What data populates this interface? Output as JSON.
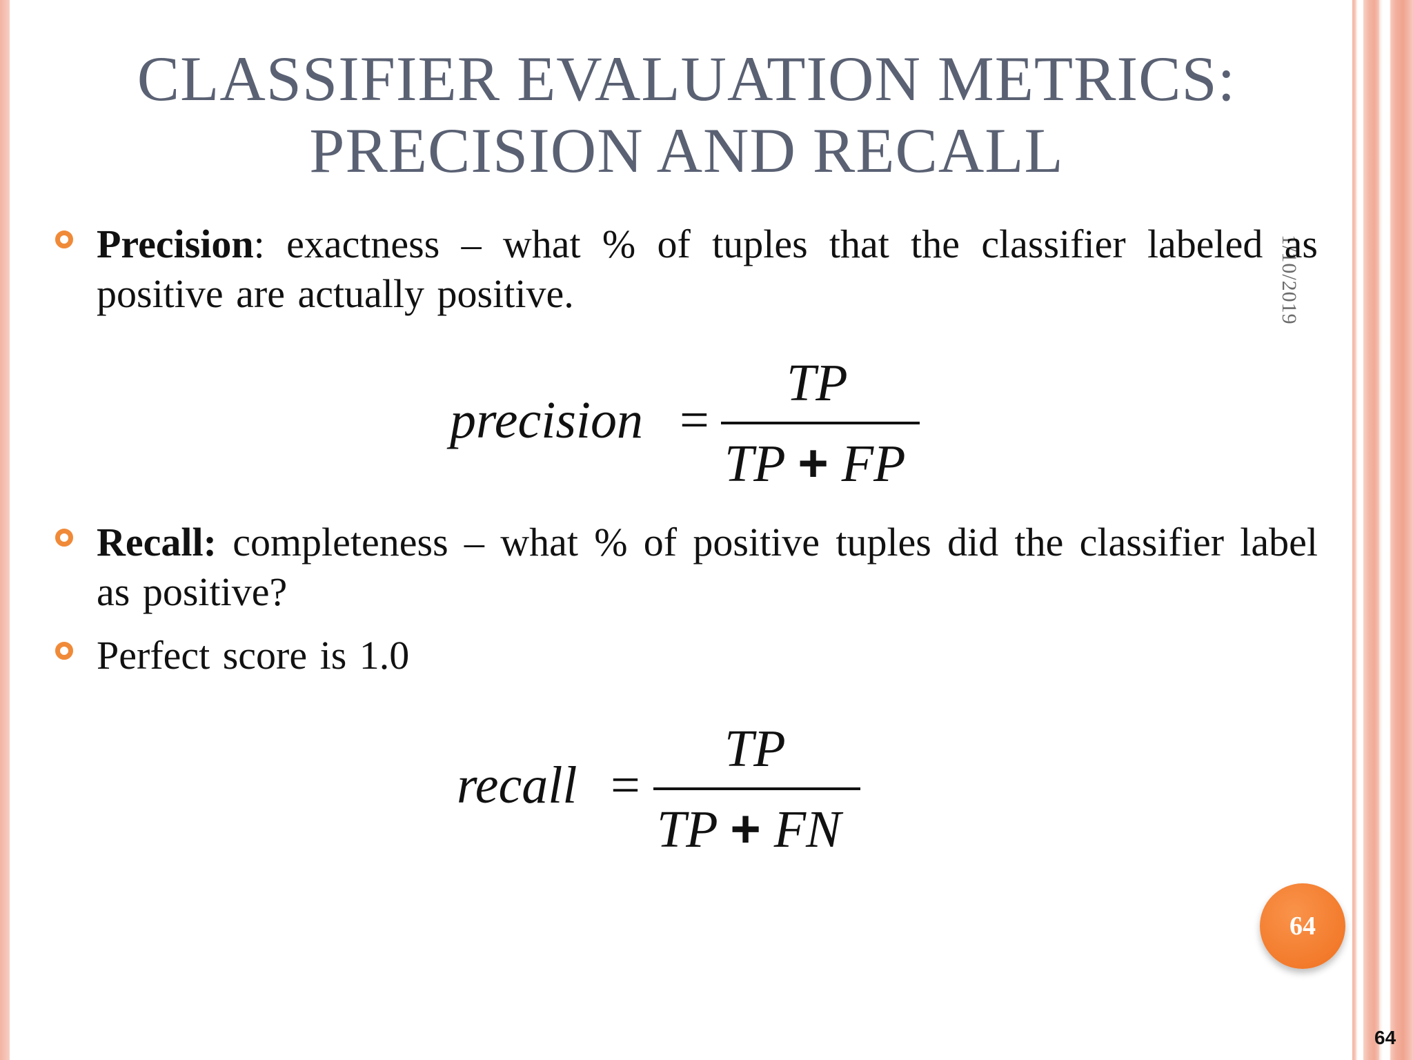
{
  "slide": {
    "title_line1": "Classifier Evaluation Metrics:",
    "title_line2": "Precision and Recall",
    "date": "1/10/2019",
    "page_badge": "64",
    "slide_number": "64"
  },
  "bullets": [
    {
      "term": "Precision",
      "sep": ":",
      "text": " exactness – what % of tuples that the classifier labeled as positive are actually positive."
    },
    {
      "term": "Recall:",
      "sep": "",
      "text": " completeness – what % of positive tuples did the classifier label as positive?"
    },
    {
      "term": "",
      "sep": "",
      "text": "Perfect score is 1.0"
    }
  ],
  "formulas": {
    "precision": {
      "lhs": "precision",
      "eq": "=",
      "num": "TP",
      "den_a": "TP",
      "den_op": "+",
      "den_b": "FP"
    },
    "recall": {
      "lhs": "recall",
      "eq": "=",
      "num": "TP",
      "den_a": "TP",
      "den_op": "+",
      "den_b": "FN"
    }
  },
  "colors": {
    "accent": "#f08a38",
    "title": "#5a6173",
    "band": "#f3b6a4"
  }
}
